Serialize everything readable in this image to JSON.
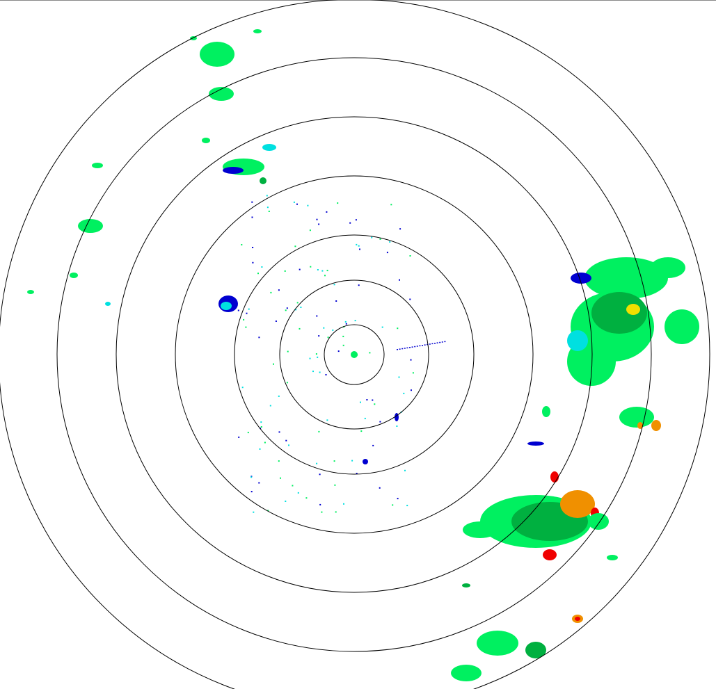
{
  "radar": {
    "range_ring_count": 7,
    "ring_color": "#000000",
    "reflectivity_colors": {
      "very_light": "#00e0e0",
      "light_blue": "#0000d0",
      "light_green": "#00f060",
      "green": "#00b040",
      "yellow": "#f0e000",
      "orange": "#f09000",
      "red": "#f00000"
    }
  }
}
